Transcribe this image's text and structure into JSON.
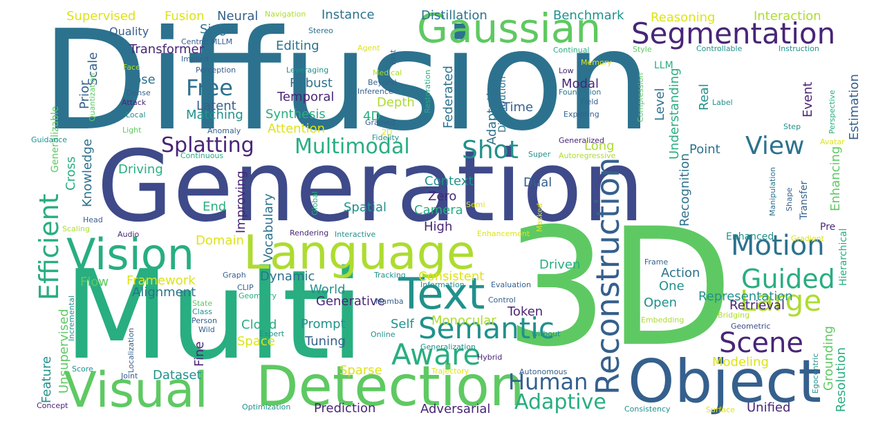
{
  "palette": {
    "dark_purple": "#482576",
    "indigo": "#3e4a89",
    "slate_blue": "#35608d",
    "steel_blue": "#2c728e",
    "teal": "#21918c",
    "sea_green": "#28ae80",
    "mint": "#5ec962",
    "yellow_green": "#addc30",
    "yellow": "#dde318"
  },
  "words": [
    "Diffusion",
    "Generation",
    "3D",
    "Multi",
    "Visual",
    "Detection",
    "Object",
    "Language",
    "Vision",
    "Gaussian",
    "Segmentation",
    "Text",
    "Reconstruction",
    "Semantic",
    "Large",
    "Scene",
    "Motion",
    "Guided",
    "Aware",
    "Efficient",
    "Multimodal",
    "Splatting",
    "Shot",
    "View",
    "Human",
    "Adaptive",
    "Free",
    "Transformer",
    "Quality",
    "Supervised",
    "Fusion",
    "Neural",
    "Navigation",
    "Instance",
    "Distillation",
    "Benchmark",
    "Reasoning",
    "Interaction",
    "Single",
    "Stereo",
    "Centric MLLM",
    "Editing",
    "Agent",
    "Fast",
    "Continual",
    "Style",
    "Controllable",
    "Instruction",
    "Implicit",
    "Memory",
    "Face",
    "Perception",
    "Leveraging",
    "Medical",
    "Beyond",
    "Inference",
    "Restoration",
    "Robust",
    "Pose",
    "Prior",
    "Scale",
    "Dense",
    "Attack",
    "Local",
    "Light",
    "Anomaly",
    "Generalizable",
    "Quantization",
    "Temporal",
    "Latent",
    "Matching",
    "Synthesis",
    "Attention",
    "Depth",
    "4D",
    "Grained",
    "2D",
    "Fidelity",
    "Guidance",
    "Federated",
    "Adaptation",
    "Distribution",
    "Time",
    "Modal",
    "LLM",
    "Low",
    "Foundation",
    "Field",
    "Exploring",
    "Compression",
    "Level",
    "Understanding",
    "Real",
    "Event",
    "Estimation",
    "Label",
    "Perspective",
    "Step",
    "Avatar",
    "Generalized",
    "Super",
    "Autoregressive",
    "Long",
    "Point",
    "Recognition",
    "Continuous",
    "Cross",
    "Knowledge",
    "Driving",
    "Vocabulary",
    "Improving",
    "Global",
    "Context",
    "Zero",
    "Camera",
    "Spatial",
    "End",
    "Dual",
    "Semi",
    "Masked",
    "Enhancing",
    "Manipulation",
    "Shape",
    "Transfer",
    "Pre",
    "Head",
    "Scaling",
    "Audio",
    "Rendering",
    "Interactive",
    "High",
    "Enhancement",
    "Domain",
    "Enhanced",
    "Gradient",
    "Hierarchical",
    "Flow",
    "Framework",
    "Graph",
    "Dynamic",
    "Consistent",
    "Driven",
    "Frame",
    "Action",
    "CLIP",
    "Tracking",
    "Information",
    "Evaluation",
    "One",
    "Representation",
    "Alignment",
    "Geometry",
    "World",
    "Generative",
    "Mamba",
    "Control",
    "Open",
    "Retrieval",
    "State",
    "Class",
    "Person",
    "Wild",
    "Incremental",
    "Unsupervised",
    "Cloud",
    "Expert",
    "Space",
    "Prompt",
    "Self",
    "Monocular",
    "Token",
    "Online",
    "without",
    "Embedding",
    "Bridging",
    "Geometric",
    "Tuning",
    "Generalization",
    "Localization",
    "Feature",
    "Score",
    "Fine",
    "Hybrid",
    "Autonomous",
    "Modeling",
    "Grounding",
    "Resolution",
    "Egocentric",
    "Joint",
    "Dataset",
    "Sparse",
    "Trajectory",
    "Concept",
    "Optimization",
    "Prediction",
    "Adversarial",
    "Consistency",
    "Surface",
    "Unified"
  ]
}
